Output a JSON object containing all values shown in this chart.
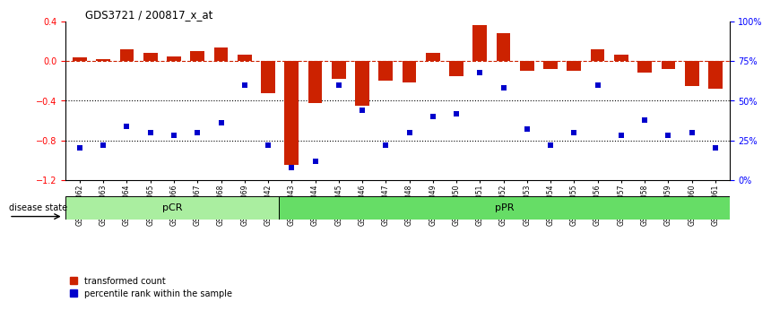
{
  "title": "GDS3721 / 200817_x_at",
  "categories": [
    "GSM559062",
    "GSM559063",
    "GSM559064",
    "GSM559065",
    "GSM559066",
    "GSM559067",
    "GSM559068",
    "GSM559069",
    "GSM559042",
    "GSM559043",
    "GSM559044",
    "GSM559045",
    "GSM559046",
    "GSM559047",
    "GSM559048",
    "GSM559049",
    "GSM559050",
    "GSM559051",
    "GSM559052",
    "GSM559053",
    "GSM559054",
    "GSM559055",
    "GSM559056",
    "GSM559057",
    "GSM559058",
    "GSM559059",
    "GSM559060",
    "GSM559061"
  ],
  "bar_values": [
    0.04,
    0.02,
    0.12,
    0.08,
    0.05,
    0.1,
    0.14,
    0.06,
    -0.32,
    -1.05,
    -0.42,
    -0.18,
    -0.45,
    -0.2,
    -0.22,
    0.08,
    -0.15,
    0.36,
    0.28,
    -0.1,
    -0.08,
    -0.1,
    0.12,
    0.06,
    -0.12,
    -0.08,
    -0.25,
    -0.28
  ],
  "percentile_values": [
    20,
    22,
    34,
    30,
    28,
    30,
    36,
    60,
    22,
    8,
    12,
    60,
    44,
    22,
    30,
    40,
    42,
    68,
    58,
    32,
    22,
    30,
    60,
    28,
    38,
    28,
    30,
    20
  ],
  "pCR_count": 9,
  "pPR_count": 19,
  "bar_color": "#cc2200",
  "percentile_color": "#0000cc",
  "background_color": "#ffffff",
  "left_ylim": [
    -1.2,
    0.4
  ],
  "left_yticks": [
    -1.2,
    -0.8,
    -0.4,
    0.0,
    0.4
  ],
  "right_ytick_vals": [
    0,
    25,
    50,
    75,
    100
  ],
  "hline_y": 0.0,
  "dotted_lines": [
    -0.4,
    -0.8
  ],
  "pCR_color": "#aaeea0",
  "pPR_color": "#66dd66",
  "disease_state_label": "disease state",
  "legend_items": [
    "transformed count",
    "percentile rank within the sample"
  ]
}
